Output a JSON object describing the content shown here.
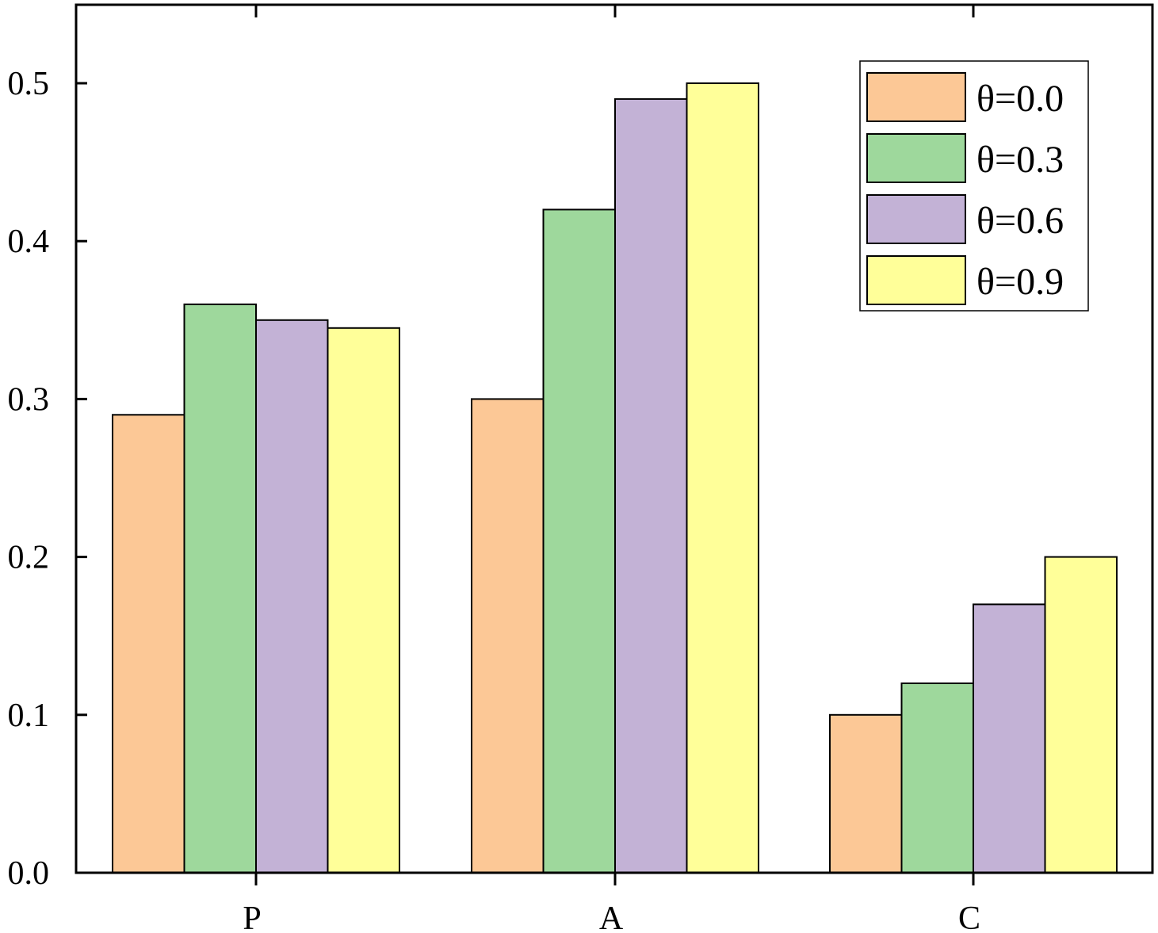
{
  "chart_data": {
    "type": "bar",
    "categories": [
      "P",
      "A",
      "C"
    ],
    "series": [
      {
        "name": "θ=0.0",
        "values": [
          0.29,
          0.3,
          0.1
        ],
        "color": "#FCC896"
      },
      {
        "name": "θ=0.3",
        "values": [
          0.36,
          0.42,
          0.12
        ],
        "color": "#9ED89C"
      },
      {
        "name": "θ=0.6",
        "values": [
          0.35,
          0.49,
          0.17
        ],
        "color": "#C3B2D6"
      },
      {
        "name": "θ=0.9",
        "values": [
          0.345,
          0.5,
          0.2
        ],
        "color": "#FFFF99"
      }
    ],
    "yticks": [
      "0.0",
      "0.1",
      "0.2",
      "0.3",
      "0.4",
      "0.5"
    ],
    "ylim": [
      0,
      0.55
    ],
    "title": "",
    "xlabel": "",
    "ylabel": "",
    "grid": false,
    "legend": "top-right"
  }
}
